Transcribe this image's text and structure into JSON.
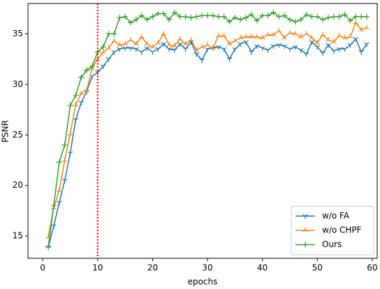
{
  "chart_data": {
    "type": "line",
    "x_label": "epochs",
    "y_label": "PSNR",
    "x": [
      1,
      2,
      3,
      4,
      5,
      6,
      7,
      8,
      9,
      10,
      11,
      12,
      13,
      14,
      15,
      16,
      17,
      18,
      19,
      20,
      21,
      22,
      23,
      24,
      25,
      26,
      27,
      28,
      29,
      30,
      31,
      32,
      33,
      34,
      35,
      36,
      37,
      38,
      39,
      40,
      41,
      42,
      43,
      44,
      45,
      46,
      47,
      48,
      49,
      50,
      51,
      52,
      53,
      54,
      55,
      56,
      57,
      58,
      59
    ],
    "series": [
      {
        "name": "w/o FA",
        "color": "#1f77b4",
        "marker": "tri_down",
        "values": [
          13.9,
          16,
          18.3,
          20.5,
          23.2,
          26.5,
          28.2,
          29.3,
          30.8,
          31.2,
          31.8,
          32.5,
          33.2,
          33.5,
          33.6,
          33.6,
          33.5,
          33.2,
          33.6,
          33.2,
          33.5,
          34,
          33.5,
          33.4,
          34,
          33.5,
          34.2,
          33,
          32.4,
          33.5,
          33.6,
          33.7,
          33.5,
          32.5,
          33.5,
          34,
          34.2,
          33.2,
          33.8,
          33.6,
          33.4,
          33.8,
          33.9,
          33.8,
          33.5,
          33.7,
          33.4,
          33,
          34.2,
          33.7,
          33.1,
          33.9,
          33.3,
          33.5,
          33.5,
          33.9,
          34.5,
          33.2,
          34.0
        ]
      },
      {
        "name": "w/o CHPF",
        "color": "#ff7f0e",
        "marker": "tri_up",
        "values": [
          14.9,
          17.8,
          19.5,
          22.5,
          25.1,
          28,
          29.1,
          29.4,
          31.6,
          32.5,
          33.2,
          33.6,
          34.3,
          33.9,
          34,
          34.4,
          34,
          34.7,
          34,
          33.7,
          34.1,
          35,
          33.9,
          33.8,
          34.5,
          34,
          34.4,
          33.4,
          33.7,
          33.9,
          33.6,
          34.8,
          34.8,
          34,
          34.3,
          34.6,
          34.7,
          34.7,
          34.7,
          34.6,
          34.9,
          34.9,
          35.3,
          34.6,
          35.1,
          35,
          34.7,
          35,
          34.6,
          34.1,
          34.9,
          34.4,
          34.2,
          34.8,
          34.6,
          34.7,
          36.1,
          35.4,
          35.6
        ]
      },
      {
        "name": "Ours",
        "color": "#2ca02c",
        "marker": "plus",
        "values": [
          13.9,
          18,
          22.3,
          24,
          27.9,
          28.9,
          30.7,
          31.4,
          31.8,
          33.2,
          33.7,
          35,
          35,
          36.6,
          36.7,
          36.1,
          36.4,
          36.8,
          36.4,
          36.7,
          37,
          37,
          36.4,
          37.1,
          36.7,
          36.7,
          36.6,
          36.7,
          36.8,
          36.8,
          36.8,
          36.7,
          36.7,
          36.2,
          36.6,
          36.4,
          36.6,
          36.9,
          36.3,
          36.8,
          36.8,
          37.1,
          36.7,
          36.8,
          36.4,
          36.2,
          36.4,
          36.9,
          36.7,
          36.7,
          36.4,
          36.6,
          36.7,
          36.7,
          36.9,
          36.3,
          36.7,
          36.7,
          36.7
        ]
      }
    ],
    "vline": {
      "x": 10,
      "color": "#ff0000",
      "style": "dotted"
    },
    "xlim": [
      -2.7,
      60.9
    ],
    "xticks": [
      0,
      10,
      20,
      30,
      40,
      50,
      60
    ],
    "ylim": [
      12.8,
      38
    ],
    "yticks": [
      15,
      20,
      25,
      30,
      35
    ],
    "grid": false,
    "legend": "lower right"
  }
}
